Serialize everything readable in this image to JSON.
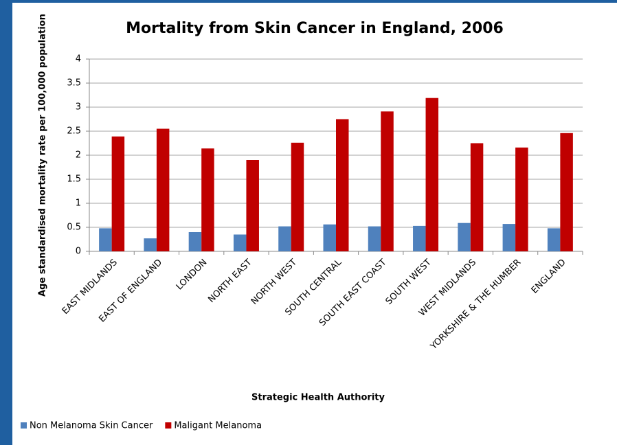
{
  "chart_data": {
    "type": "bar",
    "title": "Mortality from Skin Cancer in England, 2006",
    "x_label": "Strategic Health Authority",
    "y_label": "Age standardised mortality rate per 100,000 population",
    "categories": [
      "EAST MIDLANDS",
      "EAST OF ENGLAND",
      "LONDON",
      "NORTH EAST",
      "NORTH WEST",
      "SOUTH CENTRAL",
      "SOUTH EAST COAST",
      "SOUTH WEST",
      "WEST MIDLANDS",
      "YORKSHIRE & THE HUMBER",
      "ENGLAND"
    ],
    "series": [
      {
        "name": "Non Melanoma Skin Cancer",
        "color": "#4f81bd",
        "values": [
          0.48,
          0.27,
          0.4,
          0.35,
          0.52,
          0.56,
          0.52,
          0.53,
          0.59,
          0.57,
          0.48
        ]
      },
      {
        "name": "Maligant Melanoma",
        "color": "#c00000",
        "values": [
          2.39,
          2.55,
          2.14,
          1.9,
          2.26,
          2.75,
          2.91,
          3.19,
          2.25,
          2.16,
          2.46
        ]
      }
    ],
    "ylim": [
      0,
      4
    ],
    "yticks": [
      0,
      0.5,
      1,
      1.5,
      2,
      2.5,
      3,
      3.5,
      4
    ],
    "grid": true,
    "legend": "bottom-left"
  }
}
